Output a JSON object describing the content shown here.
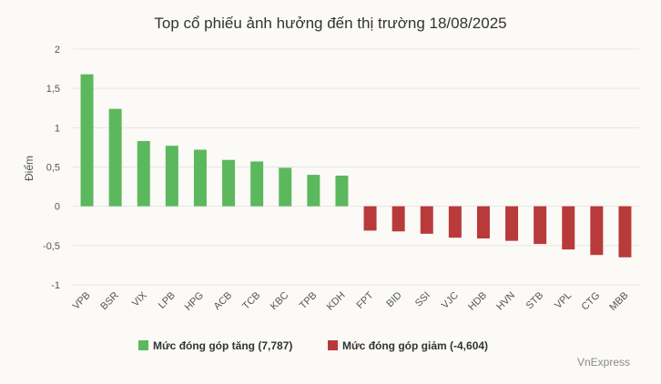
{
  "chart_data": {
    "type": "bar",
    "title": "Top cổ phiếu ảnh hưởng đến thị trường 18/08/2025",
    "ylabel": "Điểm",
    "xlabel": "",
    "ylim": [
      -1,
      2
    ],
    "yticks": [
      -1,
      -0.5,
      0,
      0.5,
      1,
      1.5,
      2
    ],
    "ytick_labels": [
      "-1",
      "-0,5",
      "0",
      "0,5",
      "1",
      "1,5",
      "2"
    ],
    "grid": true,
    "legend_position": "bottom",
    "categories": [
      "VPB",
      "BSR",
      "VIX",
      "LPB",
      "HPG",
      "ACB",
      "TCB",
      "KBC",
      "TPB",
      "KDH",
      "FPT",
      "BID",
      "SSI",
      "VJC",
      "HDB",
      "HVN",
      "STB",
      "VPL",
      "CTG",
      "MBB"
    ],
    "series": [
      {
        "name": "Mức đóng góp tăng (7,787)",
        "color": "#5cb85c",
        "values": [
          1.68,
          1.24,
          0.83,
          0.77,
          0.72,
          0.59,
          0.57,
          0.49,
          0.4,
          0.39,
          null,
          null,
          null,
          null,
          null,
          null,
          null,
          null,
          null,
          null
        ]
      },
      {
        "name": "Mức đóng góp giảm (-4,604)",
        "color": "#b93a3a",
        "values": [
          null,
          null,
          null,
          null,
          null,
          null,
          null,
          null,
          null,
          null,
          -0.31,
          -0.32,
          -0.35,
          -0.4,
          -0.41,
          -0.44,
          -0.48,
          -0.55,
          -0.62,
          -0.65
        ]
      }
    ]
  },
  "credit": "VnExpress"
}
